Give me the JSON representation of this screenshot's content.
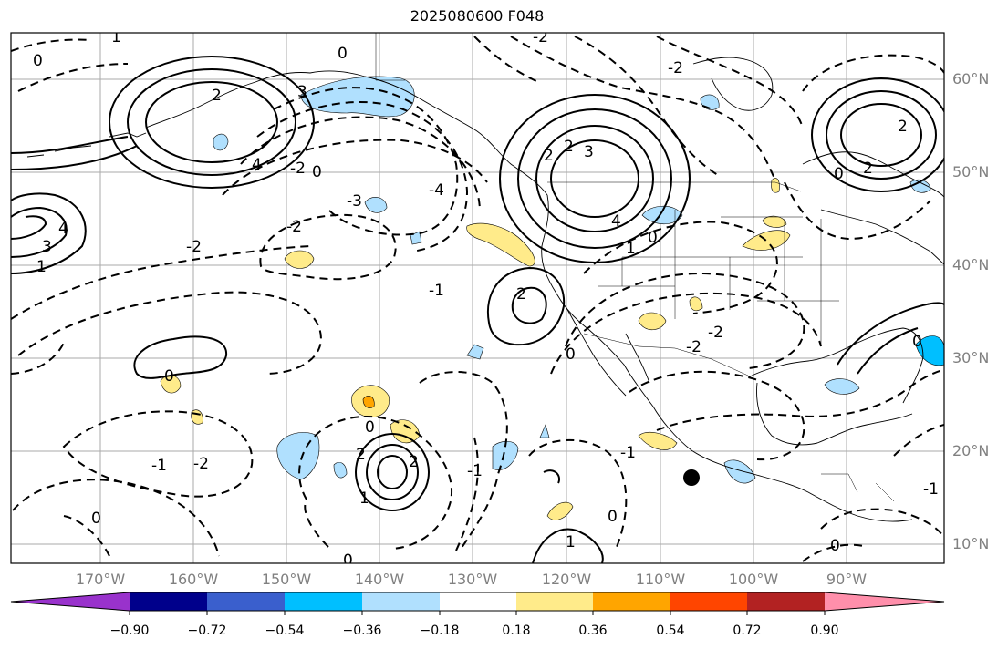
{
  "title": "2025080600 F048",
  "lon_labels": [
    "170°W",
    "160°W",
    "150°W",
    "140°W",
    "130°W",
    "120°W",
    "110°W",
    "100°W",
    "90°W"
  ],
  "lat_labels": [
    "60°N",
    "50°N",
    "40°N",
    "30°N",
    "20°N",
    "10°N"
  ],
  "colorbar": {
    "ticks": [
      "−0.90",
      "−0.72",
      "−0.54",
      "−0.36",
      "−0.18",
      "0.18",
      "0.36",
      "0.54",
      "0.72",
      "0.90"
    ],
    "colors": [
      "#9932cc",
      "#00008b",
      "#3a5fcd",
      "#00bfff",
      "#b0e0fe",
      "#ffffff",
      "#ffeb8a",
      "#ffa500",
      "#ff4500",
      "#b22222",
      "#ff8fab"
    ]
  },
  "contour_labels": {
    "a": "1",
    "b": "2",
    "c": "3",
    "d": "4",
    "e": "0",
    "f": "-1",
    "g": "-2",
    "h": "-4",
    "i": "-3"
  }
}
